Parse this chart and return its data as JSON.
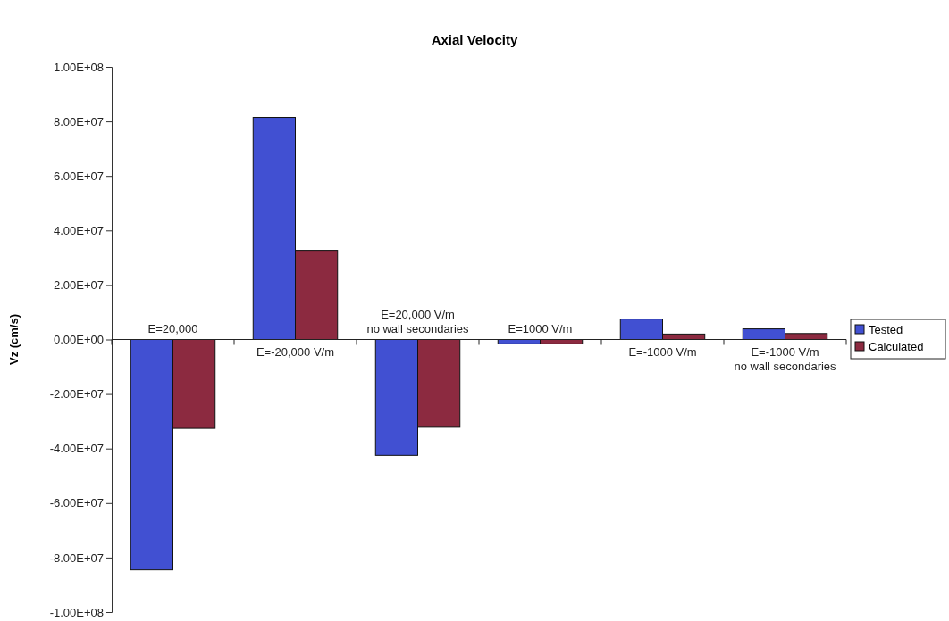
{
  "chart_data": {
    "type": "bar",
    "title": "Axial Velocity",
    "ylabel": "Vz (cm/s)",
    "categories": [
      "E=20,000",
      "E=-20,000 V/m",
      "E=20,000 V/m\nno wall secondaries",
      "E=1000 V/m",
      "E=-1000 V/m",
      "E=-1000 V/m\nno wall secondaries"
    ],
    "series": [
      {
        "name": "Tested",
        "color": "#4150d2",
        "values": [
          -84500000,
          81500000,
          -42500000,
          -1600000,
          7500000,
          3900000
        ]
      },
      {
        "name": "Calculated",
        "color": "#8c2a40",
        "values": [
          -32600000,
          32700000,
          -32200000,
          -1600000,
          2000000,
          2200000
        ]
      }
    ],
    "ylim": [
      -100000000,
      100000000
    ],
    "yticks": [
      {
        "value": 100000000,
        "label": "1.00E+08"
      },
      {
        "value": 80000000,
        "label": "8.00E+07"
      },
      {
        "value": 60000000,
        "label": "6.00E+07"
      },
      {
        "value": 40000000,
        "label": "4.00E+07"
      },
      {
        "value": 20000000,
        "label": "2.00E+07"
      },
      {
        "value": 0,
        "label": "0.00E+00"
      },
      {
        "value": -20000000,
        "label": "-2.00E+07"
      },
      {
        "value": -40000000,
        "label": "-4.00E+07"
      },
      {
        "value": -60000000,
        "label": "-6.00E+07"
      },
      {
        "value": -80000000,
        "label": "-8.00E+07"
      },
      {
        "value": -100000000,
        "label": "-1.00E+08"
      }
    ],
    "legend": "right"
  }
}
